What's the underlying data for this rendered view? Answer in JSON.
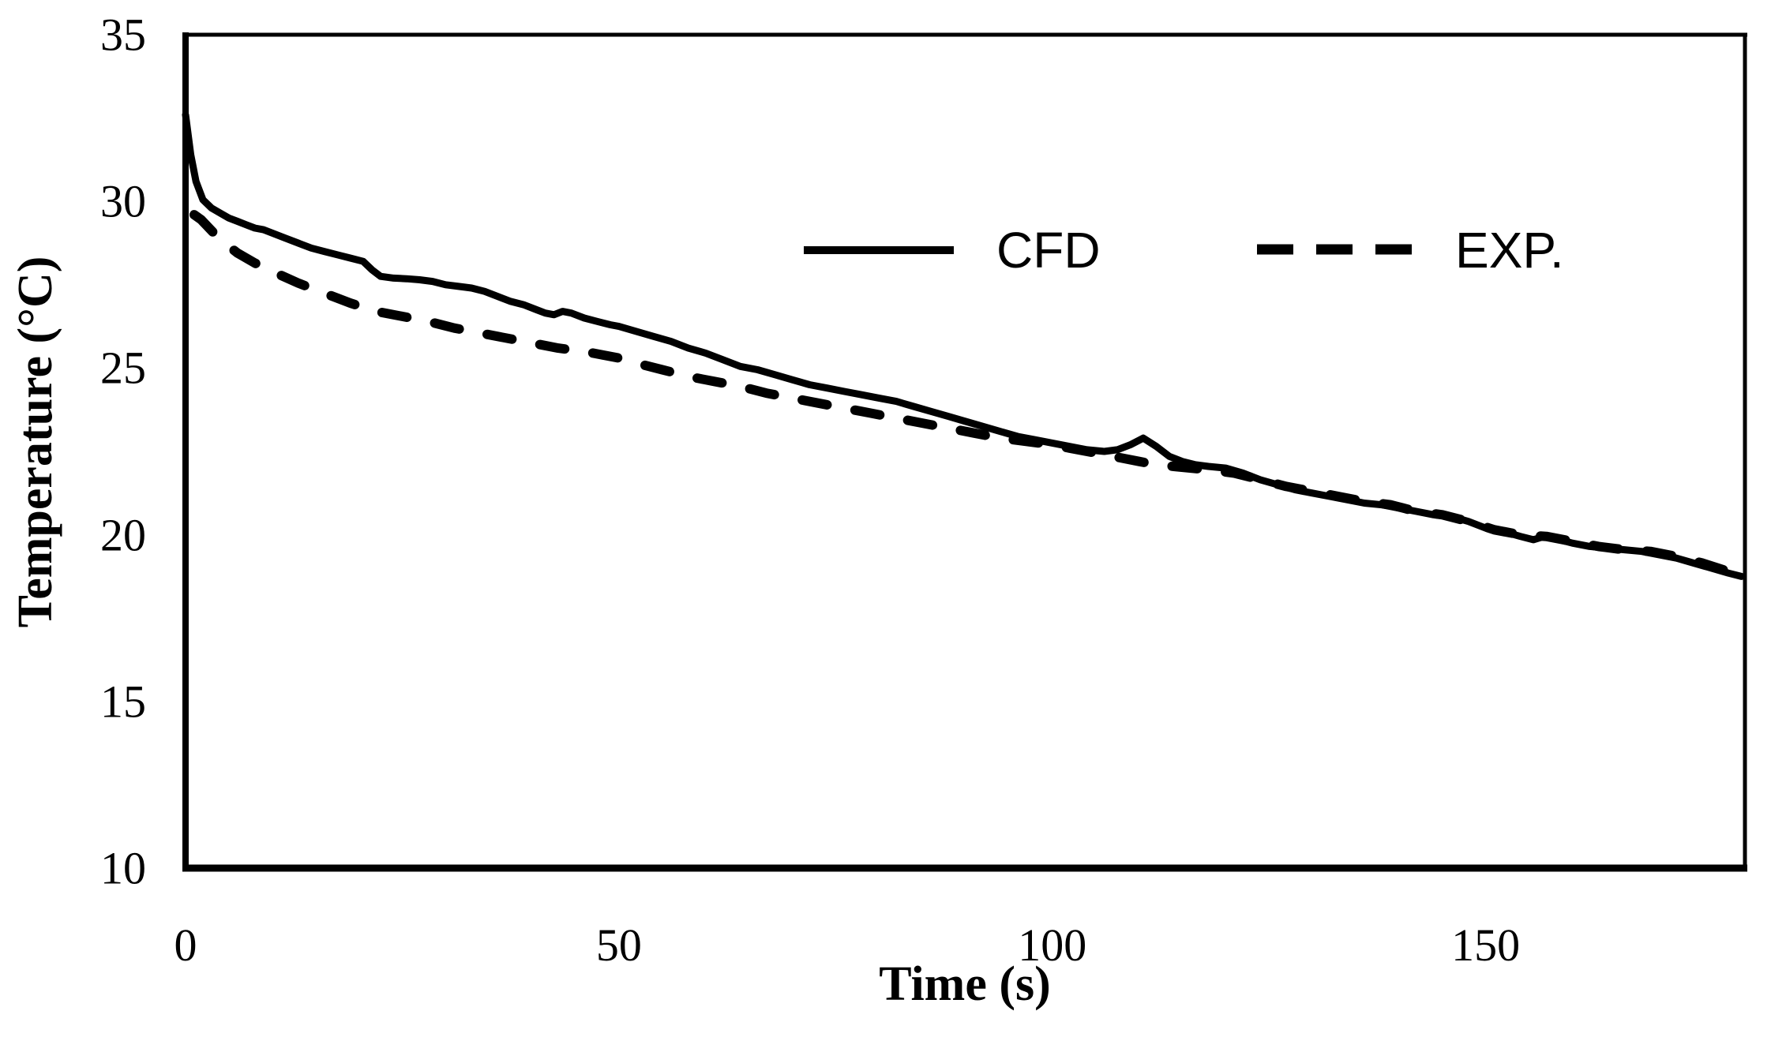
{
  "figure": {
    "background_color": "#ffffff",
    "ink_color": "#000000"
  },
  "chart_data": {
    "type": "line",
    "title": "",
    "xlabel": "Time (s)",
    "ylabel": "Temperature (°C)",
    "xlim": [
      0,
      180
    ],
    "ylim": [
      10,
      35
    ],
    "x_ticks": [
      0,
      50,
      100,
      150
    ],
    "y_ticks": [
      35,
      30,
      25,
      20,
      15,
      10
    ],
    "grid": false,
    "legend": {
      "position": "inside-top-right",
      "entries": [
        "CFD",
        "EXP."
      ]
    },
    "series": [
      {
        "name": "CFD",
        "line_style": "solid",
        "color": "#000000",
        "points": [
          [
            0,
            32.6
          ],
          [
            0.6,
            31.4
          ],
          [
            1.2,
            30.6
          ],
          [
            2,
            30.05
          ],
          [
            3,
            29.8
          ],
          [
            4,
            29.65
          ],
          [
            5,
            29.5
          ],
          [
            6,
            29.4
          ],
          [
            7,
            29.3
          ],
          [
            8,
            29.2
          ],
          [
            9,
            29.15
          ],
          [
            10,
            29.05
          ],
          [
            11.5,
            28.9
          ],
          [
            13,
            28.75
          ],
          [
            14.5,
            28.6
          ],
          [
            16,
            28.5
          ],
          [
            17.5,
            28.4
          ],
          [
            19,
            28.3
          ],
          [
            20.5,
            28.2
          ],
          [
            21.5,
            27.95
          ],
          [
            22.5,
            27.75
          ],
          [
            24,
            27.7
          ],
          [
            25.5,
            27.68
          ],
          [
            27,
            27.65
          ],
          [
            28.5,
            27.6
          ],
          [
            30,
            27.5
          ],
          [
            31.5,
            27.45
          ],
          [
            33,
            27.4
          ],
          [
            34.5,
            27.3
          ],
          [
            36,
            27.15
          ],
          [
            37.5,
            27.0
          ],
          [
            39,
            26.9
          ],
          [
            40.5,
            26.75
          ],
          [
            41.5,
            26.65
          ],
          [
            42.5,
            26.6
          ],
          [
            43.5,
            26.7
          ],
          [
            44.5,
            26.65
          ],
          [
            46,
            26.5
          ],
          [
            47.5,
            26.4
          ],
          [
            49,
            26.3
          ],
          [
            50,
            26.25
          ],
          [
            52,
            26.1
          ],
          [
            54,
            25.95
          ],
          [
            56,
            25.8
          ],
          [
            58,
            25.6
          ],
          [
            60,
            25.45
          ],
          [
            62,
            25.25
          ],
          [
            64,
            25.05
          ],
          [
            66,
            24.95
          ],
          [
            68,
            24.8
          ],
          [
            70,
            24.65
          ],
          [
            72,
            24.5
          ],
          [
            74,
            24.4
          ],
          [
            76,
            24.3
          ],
          [
            78,
            24.2
          ],
          [
            80,
            24.1
          ],
          [
            82,
            24.0
          ],
          [
            84,
            23.85
          ],
          [
            86,
            23.7
          ],
          [
            88,
            23.55
          ],
          [
            90,
            23.4
          ],
          [
            92,
            23.25
          ],
          [
            94,
            23.1
          ],
          [
            96,
            22.95
          ],
          [
            98,
            22.85
          ],
          [
            100,
            22.75
          ],
          [
            102,
            22.65
          ],
          [
            104,
            22.55
          ],
          [
            106,
            22.5
          ],
          [
            107.5,
            22.55
          ],
          [
            109,
            22.7
          ],
          [
            110.5,
            22.9
          ],
          [
            112,
            22.65
          ],
          [
            113.5,
            22.35
          ],
          [
            115,
            22.2
          ],
          [
            116.5,
            22.1
          ],
          [
            118,
            22.05
          ],
          [
            120,
            22.0
          ],
          [
            122,
            21.85
          ],
          [
            124,
            21.65
          ],
          [
            126,
            21.5
          ],
          [
            128,
            21.35
          ],
          [
            130,
            21.25
          ],
          [
            132,
            21.15
          ],
          [
            134,
            21.05
          ],
          [
            136,
            20.95
          ],
          [
            138,
            20.9
          ],
          [
            140,
            20.8
          ],
          [
            142,
            20.7
          ],
          [
            144,
            20.6
          ],
          [
            146,
            20.55
          ],
          [
            148,
            20.4
          ],
          [
            150,
            20.2
          ],
          [
            152,
            20.1
          ],
          [
            154,
            19.95
          ],
          [
            155.5,
            19.85
          ],
          [
            157,
            19.97
          ],
          [
            158.5,
            19.85
          ],
          [
            160,
            19.75
          ],
          [
            162,
            19.65
          ],
          [
            164,
            19.6
          ],
          [
            166,
            19.55
          ],
          [
            168,
            19.5
          ],
          [
            170,
            19.4
          ],
          [
            172,
            19.3
          ],
          [
            174,
            19.15
          ],
          [
            176,
            19.0
          ],
          [
            178,
            18.85
          ],
          [
            179.5,
            18.75
          ]
        ]
      },
      {
        "name": "EXP.",
        "line_style": "dashed",
        "color": "#000000",
        "points": [
          [
            1,
            29.6
          ],
          [
            1.8,
            29.45
          ],
          [
            4,
            28.85
          ],
          [
            6,
            28.45
          ],
          [
            8,
            28.15
          ],
          [
            10,
            27.9
          ],
          [
            13,
            27.55
          ],
          [
            16,
            27.25
          ],
          [
            19,
            26.95
          ],
          [
            22,
            26.7
          ],
          [
            25,
            26.55
          ],
          [
            28,
            26.4
          ],
          [
            31,
            26.2
          ],
          [
            34,
            26.05
          ],
          [
            37,
            25.9
          ],
          [
            40,
            25.75
          ],
          [
            43,
            25.6
          ],
          [
            46,
            25.5
          ],
          [
            48,
            25.4
          ],
          [
            50,
            25.3
          ],
          [
            52,
            25.15
          ],
          [
            55,
            24.95
          ],
          [
            58,
            24.75
          ],
          [
            61,
            24.6
          ],
          [
            64,
            24.45
          ],
          [
            67,
            24.25
          ],
          [
            70,
            24.1
          ],
          [
            73,
            23.95
          ],
          [
            76,
            23.8
          ],
          [
            79,
            23.65
          ],
          [
            82,
            23.5
          ],
          [
            85,
            23.35
          ],
          [
            88,
            23.2
          ],
          [
            91,
            23.05
          ],
          [
            94,
            22.9
          ],
          [
            97,
            22.8
          ],
          [
            100,
            22.7
          ],
          [
            102,
            22.6
          ],
          [
            104,
            22.5
          ],
          [
            106,
            22.4
          ],
          [
            108,
            22.3
          ],
          [
            110,
            22.2
          ],
          [
            112,
            22.1
          ],
          [
            114,
            22.05
          ],
          [
            116,
            22.0
          ],
          [
            118,
            21.95
          ],
          [
            121,
            21.85
          ],
          [
            124,
            21.65
          ],
          [
            127,
            21.45
          ],
          [
            130,
            21.3
          ],
          [
            133,
            21.15
          ],
          [
            136,
            21.0
          ],
          [
            139,
            20.9
          ],
          [
            142,
            20.7
          ],
          [
            145,
            20.6
          ],
          [
            148,
            20.4
          ],
          [
            151,
            20.15
          ],
          [
            154,
            20.0
          ],
          [
            157,
            19.95
          ],
          [
            160,
            19.8
          ],
          [
            163,
            19.65
          ],
          [
            166,
            19.55
          ],
          [
            169,
            19.5
          ],
          [
            172,
            19.35
          ],
          [
            175,
            19.15
          ],
          [
            178,
            18.9
          ],
          [
            179.5,
            18.8
          ]
        ]
      }
    ]
  }
}
